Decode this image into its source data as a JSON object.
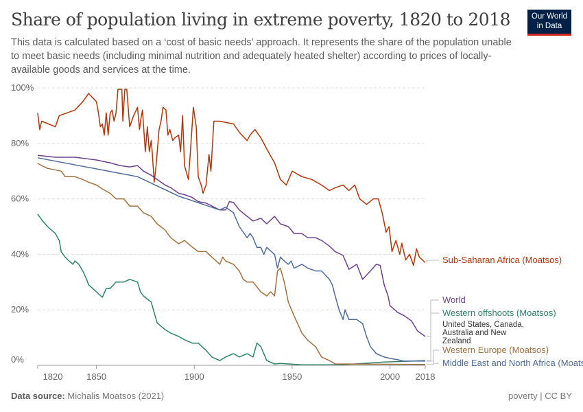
{
  "header": {
    "title": "Share of population living in extreme poverty, 1820 to 2018",
    "subtitle": "This data is calculated based on a ‘cost of basic needs’ approach. It represents the share of the population unable to meet basic needs (including minimal nutrition and adequately heated shelter) according to prices of locally-available goods and services at the time.",
    "logo_line1": "Our World",
    "logo_line2": "in Data"
  },
  "footer": {
    "source_label": "Data source:",
    "source": "Michalis Moatsos (2021)",
    "license": "poverty | CC BY"
  },
  "chart_data": {
    "type": "line",
    "title": "Share of population living in extreme poverty, 1820 to 2018",
    "xlim": [
      1820,
      2018
    ],
    "ylim": [
      0,
      100
    ],
    "x_ticks": [
      "1820",
      "1850",
      "1900",
      "1950",
      "2000",
      "2018"
    ],
    "y_ticks": [
      "0%",
      "20%",
      "40%",
      "60%",
      "80%",
      "100%"
    ],
    "grid": "horizontal dashed",
    "legend": "right, end-of-line labels",
    "series": [
      {
        "name": "Sub-Saharan Africa (Moatsos)",
        "color": "#b13507",
        "points": [
          [
            1820,
            91
          ],
          [
            1821,
            85
          ],
          [
            1822,
            88
          ],
          [
            1829,
            86
          ],
          [
            1831,
            90
          ],
          [
            1839,
            92
          ],
          [
            1843,
            95
          ],
          [
            1846,
            98
          ],
          [
            1850,
            95
          ],
          [
            1851,
            91
          ],
          [
            1852,
            86
          ],
          [
            1853,
            87
          ],
          [
            1854,
            83
          ],
          [
            1855,
            91
          ],
          [
            1856,
            83
          ],
          [
            1857,
            91
          ],
          [
            1858,
            92
          ],
          [
            1859,
            88
          ],
          [
            1860,
            91
          ],
          [
            1861,
            99.5
          ],
          [
            1863,
            99.5
          ],
          [
            1863.5,
            88
          ],
          [
            1864.5,
            99.5
          ],
          [
            1865.5,
            99.5
          ],
          [
            1867,
            86
          ],
          [
            1869,
            90
          ],
          [
            1871,
            93
          ],
          [
            1872,
            85
          ],
          [
            1872.5,
            88
          ],
          [
            1873.5,
            92
          ],
          [
            1875,
            77
          ],
          [
            1876,
            86
          ],
          [
            1877,
            77
          ],
          [
            1878,
            81
          ],
          [
            1878.5,
            77
          ],
          [
            1879.5,
            66
          ],
          [
            1880.5,
            72
          ],
          [
            1882,
            85
          ],
          [
            1883,
            88
          ],
          [
            1884,
            93
          ],
          [
            1885.5,
            92
          ],
          [
            1886.5,
            83
          ],
          [
            1887.5,
            85
          ],
          [
            1889,
            81
          ],
          [
            1890,
            82
          ],
          [
            1892,
            83
          ],
          [
            1893,
            77
          ],
          [
            1894,
            90
          ],
          [
            1895,
            72
          ],
          [
            1897,
            67
          ],
          [
            1898,
            77
          ],
          [
            1899.5,
            93
          ],
          [
            1901,
            86
          ],
          [
            1902,
            68
          ],
          [
            1903.5,
            65
          ],
          [
            1904.5,
            62
          ],
          [
            1906,
            65
          ],
          [
            1907.5,
            76
          ],
          [
            1908.5,
            70
          ],
          [
            1910,
            88
          ],
          [
            1913,
            88
          ],
          [
            1920,
            87
          ],
          [
            1923,
            84
          ],
          [
            1927,
            81
          ],
          [
            1928.5,
            83
          ],
          [
            1931,
            85
          ],
          [
            1934,
            82
          ],
          [
            1937,
            78
          ],
          [
            1941,
            73
          ],
          [
            1944,
            67
          ],
          [
            1947,
            65
          ],
          [
            1950,
            70
          ],
          [
            1955,
            68
          ],
          [
            1960,
            67
          ],
          [
            1965,
            65
          ],
          [
            1969,
            63
          ],
          [
            1972,
            64
          ],
          [
            1976,
            65
          ],
          [
            1979,
            63
          ],
          [
            1982,
            65
          ],
          [
            1984.5,
            60
          ],
          [
            1988,
            58
          ],
          [
            1991.5,
            60
          ],
          [
            1994,
            60
          ],
          [
            1996,
            55
          ],
          [
            1998,
            48
          ],
          [
            1999.5,
            50
          ],
          [
            2001,
            41
          ],
          [
            2003,
            45
          ],
          [
            2005,
            40
          ],
          [
            2006,
            44
          ],
          [
            2008,
            38
          ],
          [
            2010,
            40
          ],
          [
            2012,
            36
          ],
          [
            2013.5,
            42
          ],
          [
            2015,
            39
          ],
          [
            2018,
            37
          ]
        ]
      },
      {
        "name": "World",
        "color": "#6d3e91",
        "points": [
          [
            1820,
            75.7
          ],
          [
            1829,
            75
          ],
          [
            1839,
            75
          ],
          [
            1850,
            74
          ],
          [
            1857,
            73
          ],
          [
            1862,
            72
          ],
          [
            1867,
            71.5
          ],
          [
            1871,
            72
          ],
          [
            1874,
            70
          ],
          [
            1878,
            68.5
          ],
          [
            1881,
            67
          ],
          [
            1885,
            65
          ],
          [
            1888,
            64
          ],
          [
            1892,
            62
          ],
          [
            1895,
            61.5
          ],
          [
            1899,
            60.5
          ],
          [
            1902,
            59
          ],
          [
            1906,
            58.5
          ],
          [
            1909,
            57.4
          ],
          [
            1913,
            56
          ],
          [
            1916,
            56
          ],
          [
            1918,
            59
          ],
          [
            1920,
            58.7
          ],
          [
            1923,
            56
          ],
          [
            1927,
            53.7
          ],
          [
            1930,
            52
          ],
          [
            1934,
            53
          ],
          [
            1937,
            51
          ],
          [
            1941,
            53.7
          ],
          [
            1944,
            51
          ],
          [
            1948,
            50
          ],
          [
            1951,
            47.5
          ],
          [
            1955,
            47.5
          ],
          [
            1958,
            46
          ],
          [
            1962,
            46
          ],
          [
            1965,
            45
          ],
          [
            1969,
            43
          ],
          [
            1972,
            41
          ],
          [
            1976,
            39.6
          ],
          [
            1979,
            34.6
          ],
          [
            1983,
            36.4
          ],
          [
            1986,
            31
          ],
          [
            1990,
            34
          ],
          [
            1993,
            36.4
          ],
          [
            1995,
            36
          ],
          [
            1997,
            29
          ],
          [
            1999,
            25
          ],
          [
            2000,
            21.5
          ],
          [
            2004,
            19
          ],
          [
            2007,
            18
          ],
          [
            2011,
            16
          ],
          [
            2014,
            12.4
          ],
          [
            2018,
            10.4
          ]
        ]
      },
      {
        "name": "Western offshoots (Moatsos)",
        "color": "#2c8465",
        "points": [
          [
            1820,
            54.5
          ],
          [
            1822,
            52.5
          ],
          [
            1825,
            50
          ],
          [
            1829,
            47.5
          ],
          [
            1831,
            45
          ],
          [
            1832,
            41
          ],
          [
            1834,
            39
          ],
          [
            1836,
            37.6
          ],
          [
            1838,
            36.4
          ],
          [
            1839,
            37.6
          ],
          [
            1841,
            36.4
          ],
          [
            1843,
            34
          ],
          [
            1845,
            31
          ],
          [
            1846,
            29
          ],
          [
            1850,
            26.5
          ],
          [
            1853,
            24.5
          ],
          [
            1855,
            27.7
          ],
          [
            1857,
            27.7
          ],
          [
            1860,
            30
          ],
          [
            1864,
            30
          ],
          [
            1867,
            31
          ],
          [
            1871,
            30
          ],
          [
            1872.5,
            26.5
          ],
          [
            1874,
            25
          ],
          [
            1878,
            22.8
          ],
          [
            1881,
            15.3
          ],
          [
            1885,
            12.9
          ],
          [
            1888,
            11.6
          ],
          [
            1892,
            10.4
          ],
          [
            1895,
            9.2
          ],
          [
            1899,
            8
          ],
          [
            1902,
            8
          ],
          [
            1906,
            5.4
          ],
          [
            1909,
            3
          ],
          [
            1913,
            1.7
          ],
          [
            1916,
            3
          ],
          [
            1920,
            4.2
          ],
          [
            1923,
            3
          ],
          [
            1927,
            4.2
          ],
          [
            1930,
            3
          ],
          [
            1932,
            8
          ],
          [
            1934,
            6.7
          ],
          [
            1937,
            1.7
          ],
          [
            1941,
            0.5
          ],
          [
            1944,
            0.7
          ],
          [
            1948,
            0.5
          ],
          [
            1955,
            0.2
          ],
          [
            1976,
            0.2
          ],
          [
            1997,
            1.2
          ],
          [
            2018,
            1.7
          ]
        ]
      },
      {
        "name": "Western Europe (Moatsos)",
        "color": "#a2703c",
        "points": [
          [
            1820,
            72.8
          ],
          [
            1822,
            72
          ],
          [
            1825,
            71
          ],
          [
            1832,
            70
          ],
          [
            1834,
            68
          ],
          [
            1839,
            68
          ],
          [
            1843,
            67
          ],
          [
            1846,
            66
          ],
          [
            1850,
            65
          ],
          [
            1853,
            63.6
          ],
          [
            1857,
            62
          ],
          [
            1860,
            60
          ],
          [
            1864,
            60
          ],
          [
            1867,
            57.4
          ],
          [
            1871,
            57.4
          ],
          [
            1874,
            55
          ],
          [
            1878,
            53.7
          ],
          [
            1881,
            51
          ],
          [
            1885,
            48.8
          ],
          [
            1888,
            46
          ],
          [
            1892,
            43.8
          ],
          [
            1895,
            45
          ],
          [
            1899,
            42.6
          ],
          [
            1902,
            41
          ],
          [
            1906,
            41
          ],
          [
            1909,
            39
          ],
          [
            1913,
            36.4
          ],
          [
            1914.5,
            39
          ],
          [
            1916,
            37.6
          ],
          [
            1920,
            36.4
          ],
          [
            1923,
            34
          ],
          [
            1925,
            31
          ],
          [
            1927,
            30
          ],
          [
            1930,
            30
          ],
          [
            1934,
            26.5
          ],
          [
            1937,
            25
          ],
          [
            1939,
            26.5
          ],
          [
            1941,
            25
          ],
          [
            1942.5,
            34
          ],
          [
            1944,
            35
          ],
          [
            1946,
            30
          ],
          [
            1948,
            22.8
          ],
          [
            1951,
            17.8
          ],
          [
            1955,
            11.6
          ],
          [
            1958,
            9
          ],
          [
            1962,
            6.7
          ],
          [
            1965,
            3
          ],
          [
            1969,
            1.7
          ],
          [
            1972,
            0.5
          ],
          [
            2018,
            0.3
          ]
        ]
      },
      {
        "name": "Middle East and North Africa (Moatsos)",
        "color": "#4c6a9c",
        "points": [
          [
            1820,
            74.8
          ],
          [
            1871,
            68
          ],
          [
            1892,
            61
          ],
          [
            1913,
            56
          ],
          [
            1916,
            57
          ],
          [
            1920,
            55
          ],
          [
            1923,
            50
          ],
          [
            1927,
            46
          ],
          [
            1928.5,
            47.5
          ],
          [
            1930,
            46
          ],
          [
            1932,
            42.5
          ],
          [
            1934,
            42.5
          ],
          [
            1935.5,
            40
          ],
          [
            1937,
            42.5
          ],
          [
            1941,
            40
          ],
          [
            1942.5,
            35
          ],
          [
            1944,
            39
          ],
          [
            1946,
            37.6
          ],
          [
            1948,
            36.4
          ],
          [
            1949.5,
            37.6
          ],
          [
            1951,
            35
          ],
          [
            1955,
            36.4
          ],
          [
            1958,
            35
          ],
          [
            1962,
            34
          ],
          [
            1965,
            34
          ],
          [
            1969,
            31
          ],
          [
            1970.5,
            29
          ],
          [
            1972,
            25
          ],
          [
            1974,
            20
          ],
          [
            1976,
            16.5
          ],
          [
            1977,
            20
          ],
          [
            1979,
            16.5
          ],
          [
            1983,
            16.5
          ],
          [
            1986,
            15
          ],
          [
            1988,
            10.4
          ],
          [
            1990,
            6.7
          ],
          [
            1993,
            4.2
          ],
          [
            1997,
            3
          ],
          [
            2000,
            2.5
          ],
          [
            2004,
            2
          ],
          [
            2007,
            1.5
          ],
          [
            2018,
            1.5
          ]
        ]
      }
    ],
    "annotations": [
      "United States, Canada, Australia and New Zealand"
    ]
  }
}
